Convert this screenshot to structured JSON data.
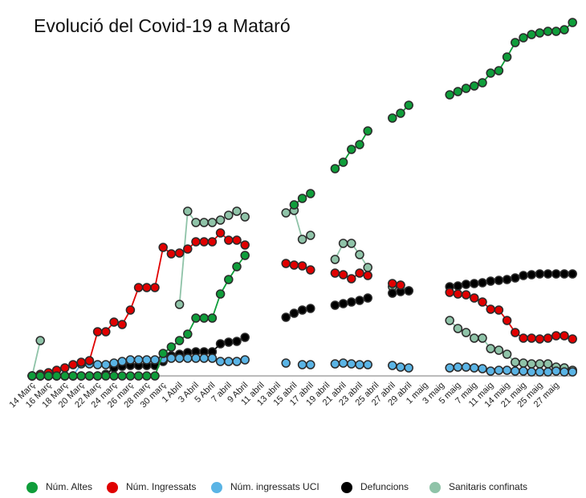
{
  "chart_data": {
    "type": "line",
    "title": "Evolució del Covid-19 a Mataró",
    "categories": [
      "14 Març",
      null,
      "16 Març",
      null,
      "18 Març",
      null,
      "20 Març",
      null,
      "22 Març",
      null,
      "24 març",
      null,
      "26 març",
      null,
      "28 març",
      null,
      "30 març",
      null,
      "1 Abril",
      null,
      "3 Abril",
      null,
      "5 Abril",
      null,
      "7 abril",
      null,
      "9 Abril",
      null,
      "11 abril",
      null,
      "13 abril",
      null,
      "15 abril",
      null,
      "17 abril",
      null,
      "19 abril",
      null,
      "21 abril",
      null,
      "23 abril",
      null,
      "25 abril",
      null,
      "27 abril",
      null,
      "29 abril",
      null,
      "1 maig",
      null,
      "3 maig",
      null,
      "5 maig",
      null,
      "7 maig",
      null,
      "11 maig",
      null,
      "14 maig",
      null,
      "21 maig",
      null,
      "25 maig",
      null,
      "27 maig",
      null,
      null
    ],
    "ylim": [
      0,
      450
    ],
    "series": [
      {
        "name": "Núm. Altes",
        "color": "#0f9d3a",
        "values": [
          0,
          0,
          0,
          0,
          0,
          0,
          0,
          0,
          0,
          0,
          0,
          0,
          0,
          0,
          0,
          0,
          28,
          36,
          44,
          52,
          72,
          72,
          72,
          102,
          120,
          136,
          150,
          null,
          null,
          null,
          null,
          null,
          213,
          221,
          227,
          null,
          null,
          258,
          266,
          282,
          288,
          305,
          null,
          null,
          321,
          327,
          337,
          null,
          null,
          null,
          null,
          350,
          354,
          358,
          361,
          365,
          377,
          380,
          397,
          415,
          421,
          425,
          427,
          429,
          429,
          431,
          440
        ]
      },
      {
        "name": "Núm. Ingressats",
        "color": "#e00000",
        "values": [
          0,
          2,
          4,
          7,
          10,
          14,
          17,
          19,
          55,
          55,
          67,
          64,
          82,
          110,
          110,
          110,
          160,
          152,
          153,
          158,
          167,
          167,
          167,
          178,
          169,
          169,
          163,
          null,
          null,
          null,
          null,
          140,
          138,
          137,
          132,
          null,
          null,
          128,
          126,
          121,
          128,
          125,
          null,
          null,
          115,
          113,
          null,
          null,
          null,
          null,
          null,
          104,
          102,
          101,
          97,
          92,
          83,
          82,
          69,
          54,
          47,
          47,
          46,
          47,
          50,
          50,
          46
        ]
      },
      {
        "name": "Núm. ingressats UCI",
        "color": "#5ab4e5",
        "values": [
          0,
          0,
          0,
          0,
          0,
          0,
          15,
          15,
          14,
          14,
          16,
          18,
          20,
          20,
          20,
          20,
          21,
          22,
          22,
          22,
          22,
          22,
          22,
          18,
          18,
          18,
          20,
          null,
          null,
          null,
          null,
          16,
          null,
          14,
          14,
          null,
          null,
          15,
          16,
          15,
          14,
          14,
          null,
          null,
          13,
          11,
          10,
          null,
          null,
          null,
          null,
          10,
          11,
          11,
          10,
          9,
          6,
          7,
          7,
          6,
          6,
          5,
          5,
          5,
          6,
          5,
          5
        ]
      },
      {
        "name": "Defuncions",
        "color": "#000000",
        "values": [
          0,
          0,
          0,
          0,
          0,
          0,
          0,
          0,
          0,
          2,
          10,
          12,
          13,
          13,
          13,
          13,
          18,
          25,
          27,
          29,
          30,
          30,
          30,
          40,
          42,
          43,
          48,
          null,
          null,
          null,
          null,
          73,
          78,
          82,
          84,
          null,
          null,
          88,
          90,
          92,
          94,
          97,
          null,
          null,
          103,
          105,
          106,
          null,
          null,
          null,
          null,
          111,
          112,
          114,
          115,
          116,
          118,
          119,
          120,
          122,
          125,
          126,
          127,
          127,
          127,
          127,
          127
        ]
      },
      {
        "name": "Sanitaris confinats",
        "color": "#8fc3a8",
        "values": [
          0,
          44,
          null,
          null,
          null,
          null,
          null,
          null,
          null,
          null,
          null,
          null,
          null,
          null,
          null,
          null,
          null,
          null,
          89,
          205,
          191,
          191,
          191,
          194,
          200,
          205,
          198,
          null,
          null,
          null,
          null,
          203,
          206,
          170,
          175,
          null,
          null,
          145,
          165,
          165,
          151,
          135,
          null,
          null,
          111,
          113,
          106,
          null,
          null,
          null,
          null,
          69,
          59,
          54,
          47,
          47,
          34,
          32,
          27,
          17,
          16,
          15,
          15,
          15,
          11,
          10,
          7
        ]
      }
    ]
  }
}
